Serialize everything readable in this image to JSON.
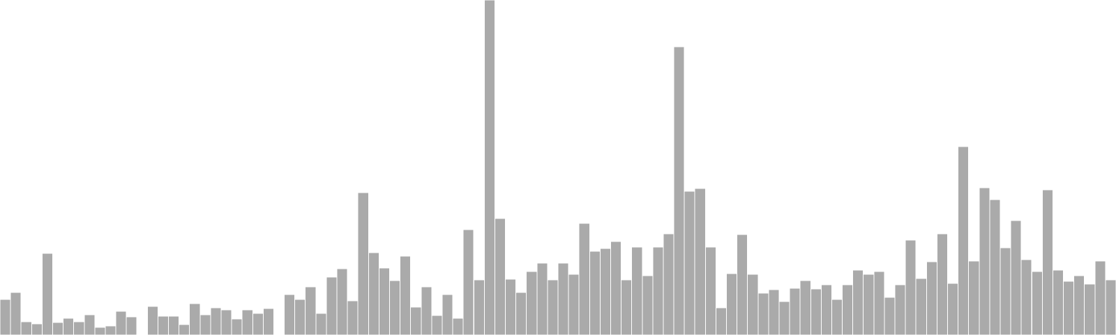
{
  "chart_data": {
    "type": "bar",
    "title": "",
    "xlabel": "",
    "ylabel": "",
    "ylim": [
      0,
      480
    ],
    "grid": false,
    "legend": "none",
    "colors": {
      "bar": "#aaaaaa",
      "background": "#ffffff"
    },
    "values": [
      51,
      61,
      19,
      16,
      117,
      18,
      24,
      19,
      29,
      11,
      13,
      34,
      26,
      0,
      41,
      27,
      27,
      15,
      45,
      29,
      39,
      36,
      23,
      36,
      31,
      38,
      0,
      58,
      51,
      69,
      31,
      83,
      95,
      49,
      204,
      118,
      96,
      78,
      113,
      40,
      69,
      28,
      58,
      24,
      151,
      79,
      480,
      167,
      80,
      61,
      91,
      103,
      79,
      103,
      87,
      160,
      120,
      124,
      134,
      79,
      126,
      85,
      126,
      145,
      413,
      206,
      210,
      126,
      39,
      88,
      144,
      87,
      60,
      65,
      48,
      67,
      78,
      66,
      72,
      51,
      72,
      93,
      87,
      91,
      54,
      72,
      136,
      81,
      105,
      145,
      74,
      270,
      106,
      211,
      194,
      125,
      164,
      108,
      91,
      208,
      93,
      77,
      85,
      73,
      106,
      79
    ]
  }
}
